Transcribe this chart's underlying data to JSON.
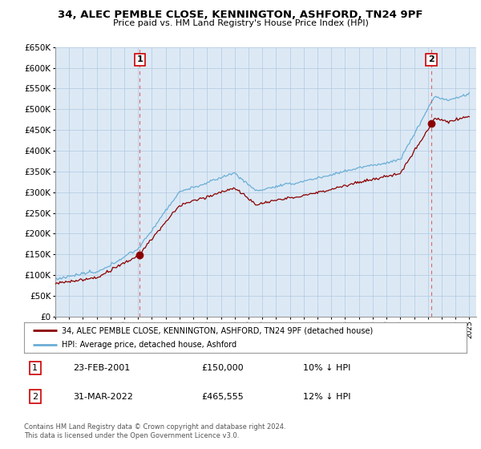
{
  "title": "34, ALEC PEMBLE CLOSE, KENNINGTON, ASHFORD, TN24 9PF",
  "subtitle": "Price paid vs. HM Land Registry's House Price Index (HPI)",
  "ylim": [
    0,
    650000
  ],
  "yticks": [
    0,
    50000,
    100000,
    150000,
    200000,
    250000,
    300000,
    350000,
    400000,
    450000,
    500000,
    550000,
    600000,
    650000
  ],
  "x_start_year": 1995,
  "x_end_year": 2025,
  "hpi_color": "#6baed6",
  "price_color": "#8b0000",
  "sale1_year": 2001.12,
  "sale1_price": 150000,
  "sale2_year": 2022.25,
  "sale2_price": 465555,
  "legend_property": "34, ALEC PEMBLE CLOSE, KENNINGTON, ASHFORD, TN24 9PF (detached house)",
  "legend_hpi": "HPI: Average price, detached house, Ashford",
  "footnote": "Contains HM Land Registry data © Crown copyright and database right 2024.\nThis data is licensed under the Open Government Licence v3.0.",
  "table_row1": [
    "1",
    "23-FEB-2001",
    "£150,000",
    "10% ↓ HPI"
  ],
  "table_row2": [
    "2",
    "31-MAR-2022",
    "£465,555",
    "12% ↓ HPI"
  ],
  "bg_color": "#ffffff",
  "chart_bg": "#dce9f5",
  "grid_color": "#b0c8e0"
}
